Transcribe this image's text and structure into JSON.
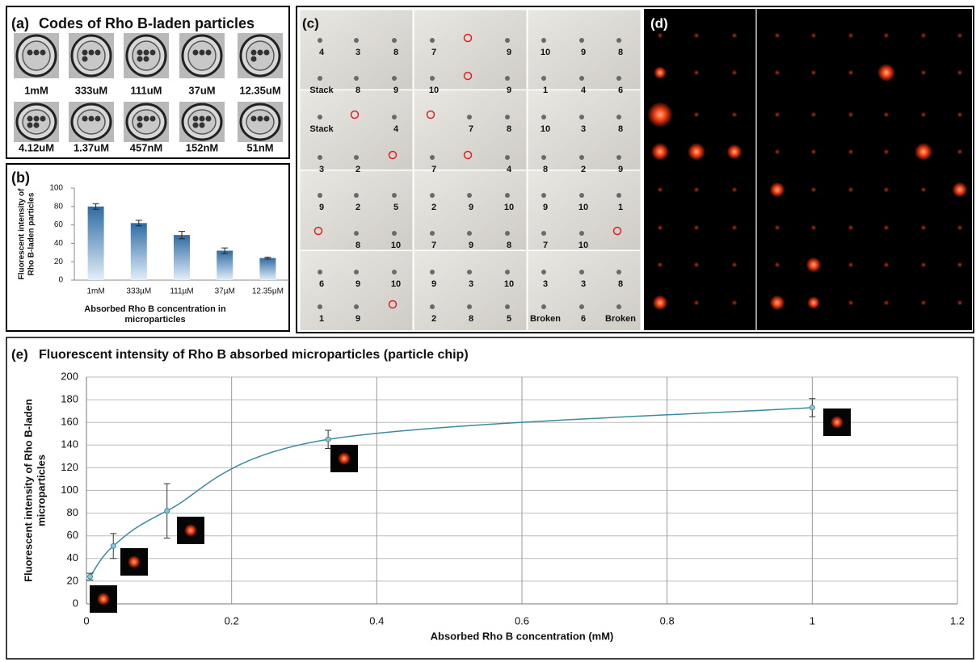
{
  "panel_a": {
    "label": "(a)",
    "title": "Codes of Rho B-laden particles",
    "codes": [
      "1mM",
      "333uM",
      "111uM",
      "37uM",
      "12.35uM",
      "4.12uM",
      "1.37uM",
      "457nM",
      "152nM",
      "51nM"
    ]
  },
  "panel_c": {
    "label": "(c)",
    "grid": [
      [
        "4",
        "3",
        "8",
        "7",
        null,
        "9",
        "10",
        "9",
        "8"
      ],
      [
        "Stack",
        "8",
        "9",
        "10",
        null,
        "9",
        "1",
        "4",
        "6"
      ],
      [
        "Stack",
        null,
        "4",
        null,
        "7",
        "8",
        "10",
        "3",
        "8"
      ],
      [
        "3",
        "2",
        null,
        "7",
        null,
        "4",
        "8",
        "2",
        "9"
      ],
      [
        "9",
        "2",
        "5",
        "2",
        "9",
        "10",
        "9",
        "10",
        "1"
      ],
      [
        null,
        "8",
        "10",
        "7",
        "9",
        "8",
        "7",
        "10",
        null
      ],
      [
        "6",
        "9",
        "10",
        "9",
        "3",
        "10",
        "3",
        "3",
        "8"
      ],
      [
        "1",
        "9",
        null,
        "2",
        "8",
        "5",
        "Broken",
        "6",
        "Broken"
      ]
    ]
  },
  "panel_d": {
    "label": "(d)"
  },
  "chart_data": [
    {
      "type": "bar",
      "panel_label": "(b)",
      "categories": [
        "1mM",
        "333µM",
        "111µM",
        "37µM",
        "12.35µM"
      ],
      "values": [
        80,
        62,
        49,
        32,
        24
      ],
      "errors": [
        3,
        3,
        4,
        3,
        1
      ],
      "color": "#2e6ca4",
      "ylim": [
        0,
        100
      ],
      "yticks": [
        0,
        20,
        40,
        60,
        80,
        100
      ],
      "ylabel": [
        "Fluorescent intensity of",
        "Rho B-laden particles"
      ],
      "xlabel": [
        "Absorbed Rho B concentration in",
        "microparticles"
      ]
    },
    {
      "type": "line",
      "panel_label": "(e)",
      "title": "Fluorescent intensity of Rho B absorbed microparticles (particle chip)",
      "x": [
        0.005,
        0.037,
        0.111,
        0.333,
        1
      ],
      "values": [
        24,
        51,
        82,
        145,
        173
      ],
      "errors": [
        3,
        11,
        24,
        8,
        8
      ],
      "color": "#3a8aa0",
      "xlim": [
        0,
        1.2
      ],
      "xticks": [
        0,
        0.2,
        0.4,
        0.6,
        0.8,
        1,
        1.2
      ],
      "ylim": [
        0,
        200
      ],
      "yticks": [
        0,
        20,
        40,
        60,
        80,
        100,
        120,
        140,
        160,
        180,
        200
      ],
      "grid": true,
      "ylabel": [
        "Fluorescent intensity of Rho B-laden",
        "microparticles"
      ],
      "xlabel": "Absorbed Rho B concentration (mM)"
    }
  ]
}
